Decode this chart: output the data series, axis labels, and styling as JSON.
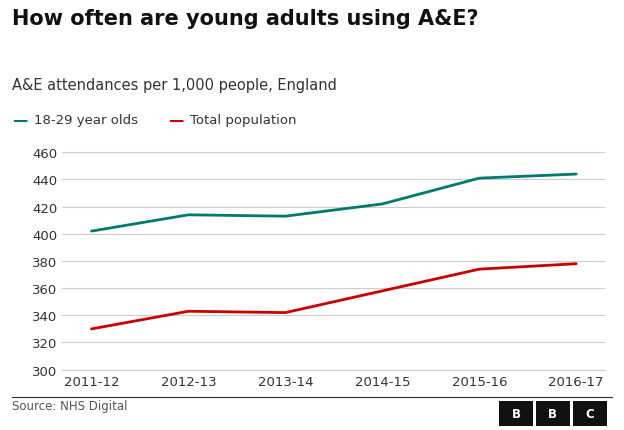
{
  "title": "How often are young adults using A&E?",
  "subtitle": "A&E attendances per 1,000 people, England",
  "source": "Source: NHS Digital",
  "x_labels": [
    "2011-12",
    "2012-13",
    "2013-14",
    "2014-15",
    "2015-16",
    "2016-17"
  ],
  "young_adults": [
    402,
    414,
    413,
    422,
    441,
    444
  ],
  "total_pop": [
    330,
    343,
    342,
    358,
    374,
    378
  ],
  "young_color": "#007a6e",
  "total_color": "#cc0000",
  "ylim": [
    300,
    465
  ],
  "yticks": [
    300,
    320,
    340,
    360,
    380,
    400,
    420,
    440,
    460
  ],
  "legend_young": "18-29 year olds",
  "legend_total": "Total population",
  "bg_color": "#ffffff",
  "grid_color": "#cccccc",
  "title_fontsize": 15,
  "subtitle_fontsize": 10.5,
  "tick_fontsize": 9.5,
  "source_fontsize": 8.5,
  "legend_fontsize": 9.5,
  "line_width": 2.0
}
